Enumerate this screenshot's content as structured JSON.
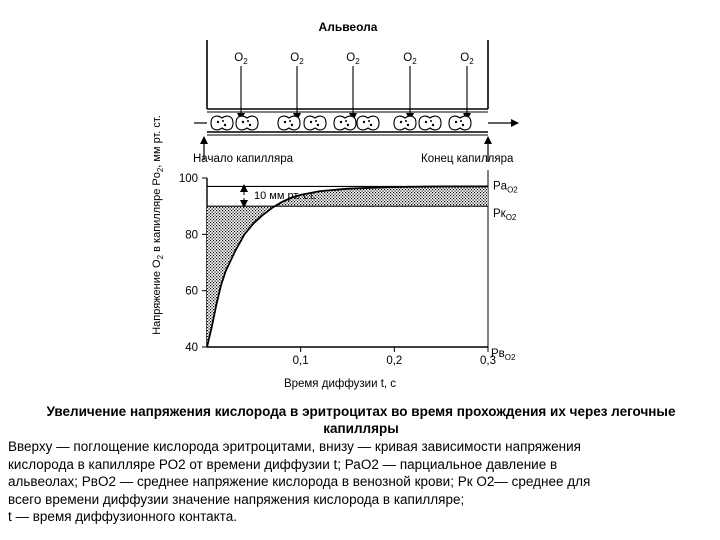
{
  "diagram": {
    "alveola_label": "Альвеола",
    "o2_label": "O",
    "o2_sub": "2",
    "capillary_start_label": "Начало капилляра",
    "capillary_end_label": "Конец капилляра",
    "gradient_label": "10 мм рт. ст.",
    "y_axis_label_main": "Напряжение O",
    "y_axis_label_sub": "2",
    "y_axis_label_rest": " в капилляре Po",
    "y_axis_label_sub2": "2",
    "y_axis_label_units": ", мм рт. ст.",
    "x_axis_label": "Время диффузии t, с",
    "pa_label": "Pa",
    "pa_sub": "O2",
    "pk_label": "Pк",
    "pk_sub": "O2",
    "pv_label": "Pв",
    "pv_sub": "O2"
  },
  "chart_data": {
    "type": "line",
    "xlabel": "Время диффузии t, с",
    "ylabel": "Напряжение O2 в капилляре Po2, мм рт. ст.",
    "x_ticks": [
      "0,1",
      "0,2",
      "0,3"
    ],
    "y_ticks": [
      "40",
      "60",
      "80",
      "100"
    ],
    "xlim": [
      0,
      0.3
    ],
    "ylim": [
      40,
      100
    ],
    "pa_o2": 97,
    "pk_o2": 90,
    "pv_o2": 40,
    "curve_x": [
      0,
      0.005,
      0.01,
      0.015,
      0.02,
      0.03,
      0.04,
      0.05,
      0.06,
      0.07,
      0.08,
      0.09,
      0.1,
      0.12,
      0.15,
      0.2,
      0.25,
      0.3
    ],
    "curve_y": [
      40,
      47,
      55,
      62,
      67,
      74,
      80,
      84,
      87,
      89.5,
      91.5,
      93,
      94,
      95.3,
      96.2,
      96.8,
      97,
      97
    ]
  },
  "caption": {
    "title": "Увеличение напряжения кислорода в эритроцитах во время прохождения их через легочные капилляры",
    "lines": [
      "Вверху — поглощение кислорода эритроцитами, внизу — кривая зависимости напряжения",
      "кислорода в капилляре РО2 от времени диффузии t; РаО2 — парциальное давление в",
      "альвеолах; РвО2 — среднее напряжение кислорода в венозной крови; Рк О2— среднее для",
      "всего времени диффузии значение напряжения кислорода в капилляре;",
      "t — время диффузионного контакта."
    ]
  }
}
